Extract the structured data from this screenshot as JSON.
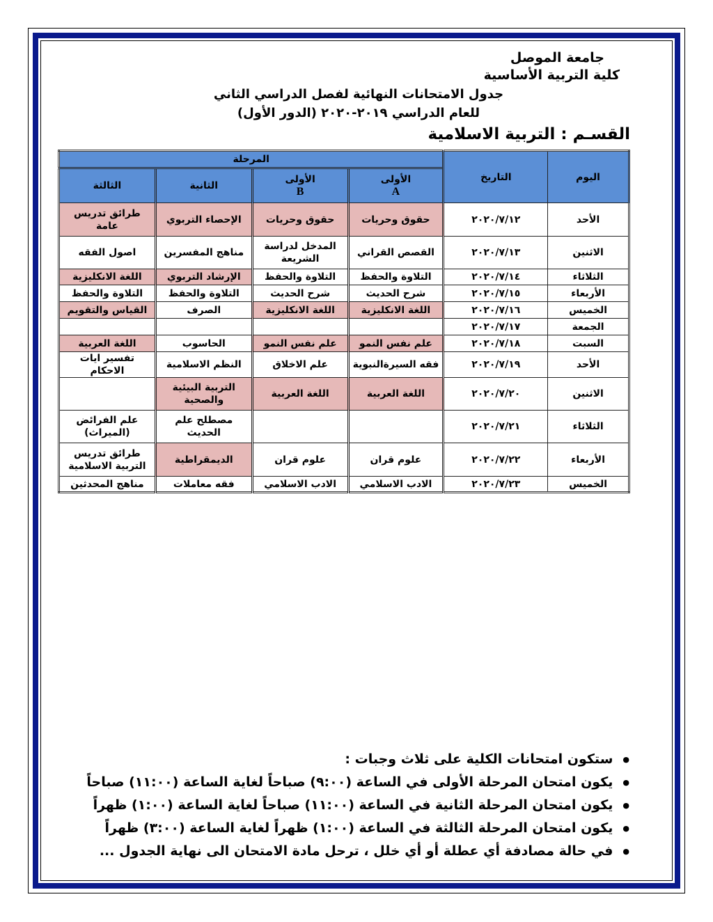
{
  "header": {
    "university": "جامعة الموصل",
    "college": "كلية التربية الأساسية",
    "title_line1": "جدول الامتحانات النهائية لفصل الدراسي الثاني",
    "title_line2": "للعام الدراسي  ٢٠١٩-٢٠٢٠ (الدور الأول)",
    "department": "القسـم : التربية الاسلامية"
  },
  "colors": {
    "header_blue": "#5b8fd6",
    "highlight_pink": "#e6b9b8",
    "frame_navy": "#0a1a8c"
  },
  "table": {
    "col_day": "اليوم",
    "col_date": "التاريخ",
    "col_stage": "المرحلة",
    "stages": [
      {
        "name": "الأولى",
        "sub": "A"
      },
      {
        "name": "الأولى",
        "sub": "B"
      },
      {
        "name": "الثانية",
        "sub": ""
      },
      {
        "name": "الثالثة",
        "sub": ""
      }
    ],
    "rows": [
      {
        "day": "الأحد",
        "date": "٢٠٢٠/٧/١٢",
        "cells": [
          "حقوق وحريات",
          "حقوق وحريات",
          "الإحصاء التربوي",
          "طرائق تدريس عامة"
        ],
        "pink": [
          true,
          true,
          true,
          true
        ]
      },
      {
        "day": "الاثنين",
        "date": "٢٠٢٠/٧/١٣",
        "cells": [
          "القصص القراني",
          "المدخل لدراسة الشريعة",
          "مناهج المفسرين",
          "اصول الفقه"
        ],
        "pink": [
          false,
          false,
          false,
          false
        ]
      },
      {
        "day": "الثلاثاء",
        "date": "٢٠٢٠/٧/١٤",
        "cells": [
          "التلاوة والحفظ",
          "التلاوة والحفظ",
          "الإرشاد التربوي",
          "اللغة الانكليزية"
        ],
        "pink": [
          false,
          false,
          true,
          true
        ]
      },
      {
        "day": "الأربعاء",
        "date": "٢٠٢٠/٧/١٥",
        "cells": [
          "شرح الحديث",
          "شرح الحديث",
          "التلاوة والحفظ",
          "التلاوة والحفظ"
        ],
        "pink": [
          false,
          false,
          false,
          false
        ]
      },
      {
        "day": "الخميس",
        "date": "٢٠٢٠/٧/١٦",
        "cells": [
          "اللغة الانكليزية",
          "اللغة الانكليزية",
          "الصرف",
          "القياس والتقويم"
        ],
        "pink": [
          true,
          true,
          false,
          true
        ]
      },
      {
        "day": "الجمعة",
        "date": "٢٠٢٠/٧/١٧",
        "cells": [
          "",
          "",
          "",
          ""
        ],
        "pink": [
          false,
          false,
          false,
          false
        ]
      },
      {
        "day": "السبت",
        "date": "٢٠٢٠/٧/١٨",
        "cells": [
          "علم نفس النمو",
          "علم نفس النمو",
          "الحاسوب",
          "اللغة العربية"
        ],
        "pink": [
          true,
          true,
          false,
          true
        ]
      },
      {
        "day": "الأحد",
        "date": "٢٠٢٠/٧/١٩",
        "cells": [
          "فقه السيرةالنبوية",
          "علم الاخلاق",
          "النظم الاسلامية",
          "تفسير ايات الاحكام"
        ],
        "pink": [
          false,
          false,
          false,
          false
        ]
      },
      {
        "day": "الاثنين",
        "date": "٢٠٢٠/٧/٢٠",
        "cells": [
          "اللغة العربية",
          "اللغة العربية",
          "التربية البيئية والصحية",
          ""
        ],
        "pink": [
          true,
          true,
          true,
          false
        ]
      },
      {
        "day": "الثلاثاء",
        "date": "٢٠٢٠/٧/٢١",
        "cells": [
          "",
          "",
          "مصطلح علم الحديث",
          "علم الفرائض (الميراث)"
        ],
        "pink": [
          false,
          false,
          false,
          false
        ]
      },
      {
        "day": "الأربعاء",
        "date": "٢٠٢٠/٧/٢٢",
        "cells": [
          "علوم قران",
          "علوم قران",
          "الديمقراطية",
          "طرائق تدريس التربية الاسلامية"
        ],
        "pink": [
          false,
          false,
          true,
          false
        ]
      },
      {
        "day": "الخميس",
        "date": "٢٠٢٠/٧/٢٣",
        "cells": [
          "الادب الاسلامي",
          "الادب الاسلامي",
          "فقه معاملات",
          "مناهج المحدثين"
        ],
        "pink": [
          false,
          false,
          false,
          false
        ]
      }
    ]
  },
  "notes": [
    "ستكون امتحانات الكلية على ثلاث وجبات :",
    "يكون امتحان المرحلة الأولى في الساعة (٩:٠٠) صباحاً لغاية الساعة (١١:٠٠) صباحاً",
    "يكون امتحان المرحلة الثانية في الساعة (١١:٠٠) صباحاً لغاية الساعة (١:٠٠) ظهراً",
    "يكون امتحان المرحلة الثالثة في الساعة (١:٠٠) ظهراً لغاية الساعة (٣:٠٠) ظهراً",
    "في حالة مصادفة أي عطلة أو أي خلل ، ترحل مادة الامتحان الى نهاية الجدول ..."
  ]
}
